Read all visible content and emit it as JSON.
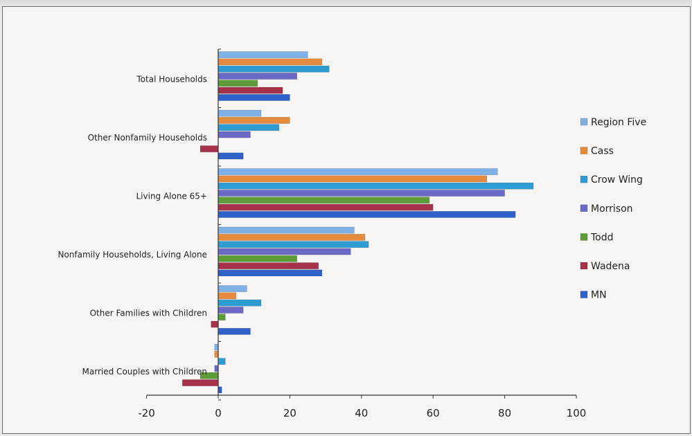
{
  "chart_data": {
    "type": "bar",
    "orientation": "horizontal",
    "categories": [
      "Total Households",
      "Other Nonfamily Households",
      "Living Alone 65+",
      "Nonfamily Households, Living Alone",
      "Other Families with Children",
      "Married Couples with Children"
    ],
    "series": [
      {
        "name": "Region Five",
        "color": "#7fb0e6",
        "values": [
          25,
          12,
          78,
          38,
          8,
          -1
        ]
      },
      {
        "name": "Cass",
        "color": "#e58b3f",
        "values": [
          29,
          20,
          75,
          41,
          5,
          -1
        ]
      },
      {
        "name": "Crow Wing",
        "color": "#2f9bd3",
        "values": [
          31,
          17,
          88,
          42,
          12,
          2
        ]
      },
      {
        "name": "Morrison",
        "color": "#6a6ac6",
        "values": [
          22,
          9,
          80,
          37,
          7,
          -1
        ]
      },
      {
        "name": "Todd",
        "color": "#5e9c3a",
        "values": [
          11,
          0,
          59,
          22,
          2,
          -5
        ]
      },
      {
        "name": "Wadena",
        "color": "#a5324a",
        "values": [
          18,
          -5,
          60,
          28,
          -2,
          -10
        ]
      },
      {
        "name": "MN",
        "color": "#2f62c8",
        "values": [
          20,
          7,
          83,
          29,
          9,
          1
        ]
      }
    ],
    "xlim": [
      -20,
      100
    ],
    "xticks": [
      -20,
      0,
      20,
      40,
      60,
      80,
      100
    ],
    "legend_position": "right",
    "grid": false
  }
}
